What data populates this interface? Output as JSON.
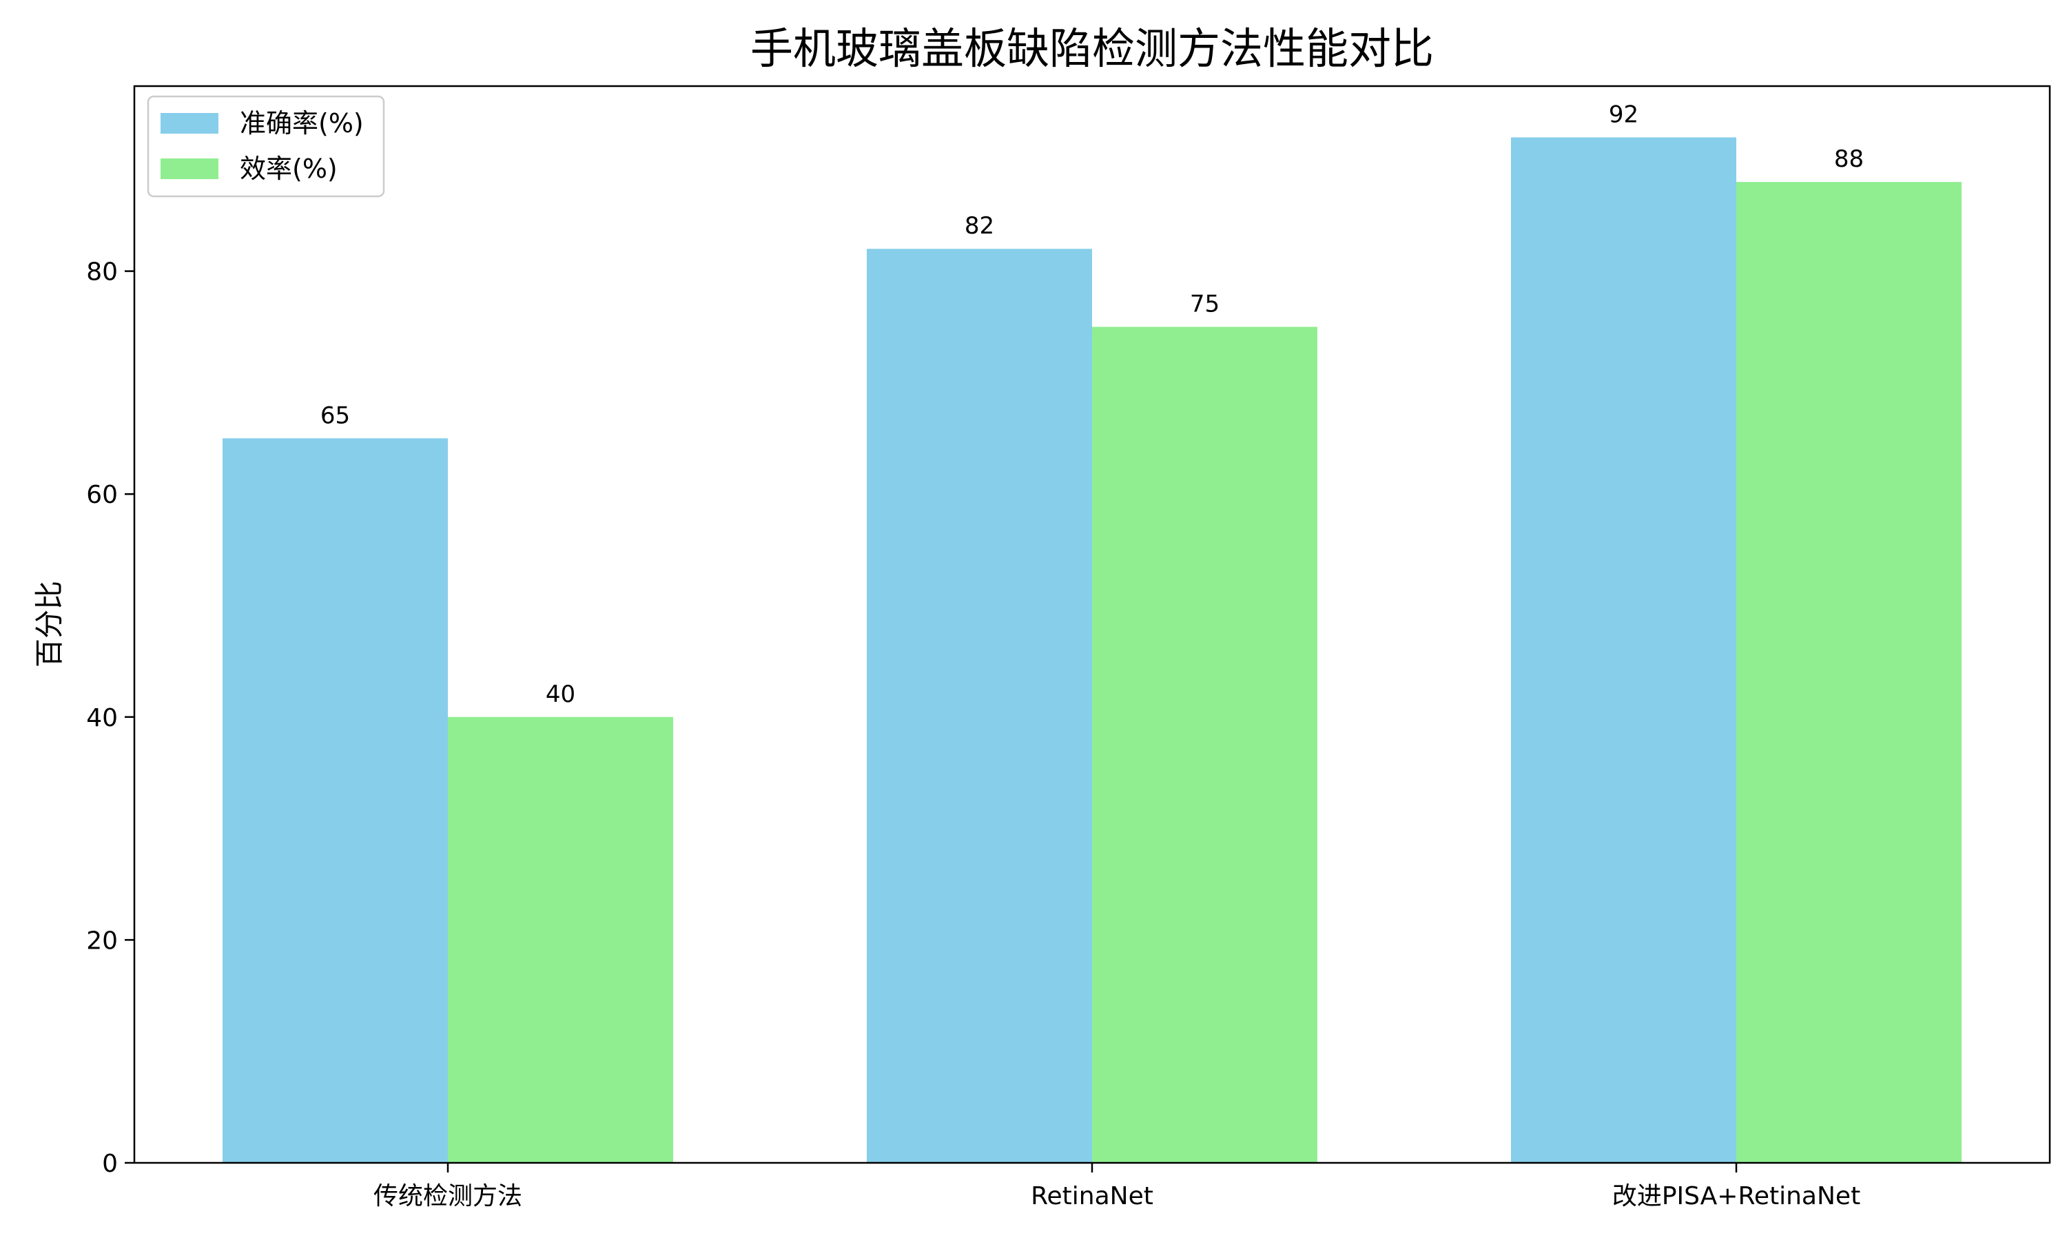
{
  "chart_data": {
    "type": "bar",
    "title": "手机玻璃盖板缺陷检测方法性能对比",
    "xlabel": "",
    "ylabel": "百分比",
    "categories": [
      "传统检测方法",
      "RetinaNet",
      "改进PISA+RetinaNet"
    ],
    "series": [
      {
        "name": "准确率(%)",
        "values": [
          65,
          82,
          92
        ],
        "color": "#87CEEB"
      },
      {
        "name": "效率(%)",
        "values": [
          40,
          75,
          88
        ],
        "color": "#90EE90"
      }
    ],
    "ylim": [
      0,
      96.6
    ],
    "yticks": [
      0,
      20,
      40,
      60,
      80
    ],
    "legend_position": "top-left",
    "grid": false,
    "data_labels": true
  }
}
